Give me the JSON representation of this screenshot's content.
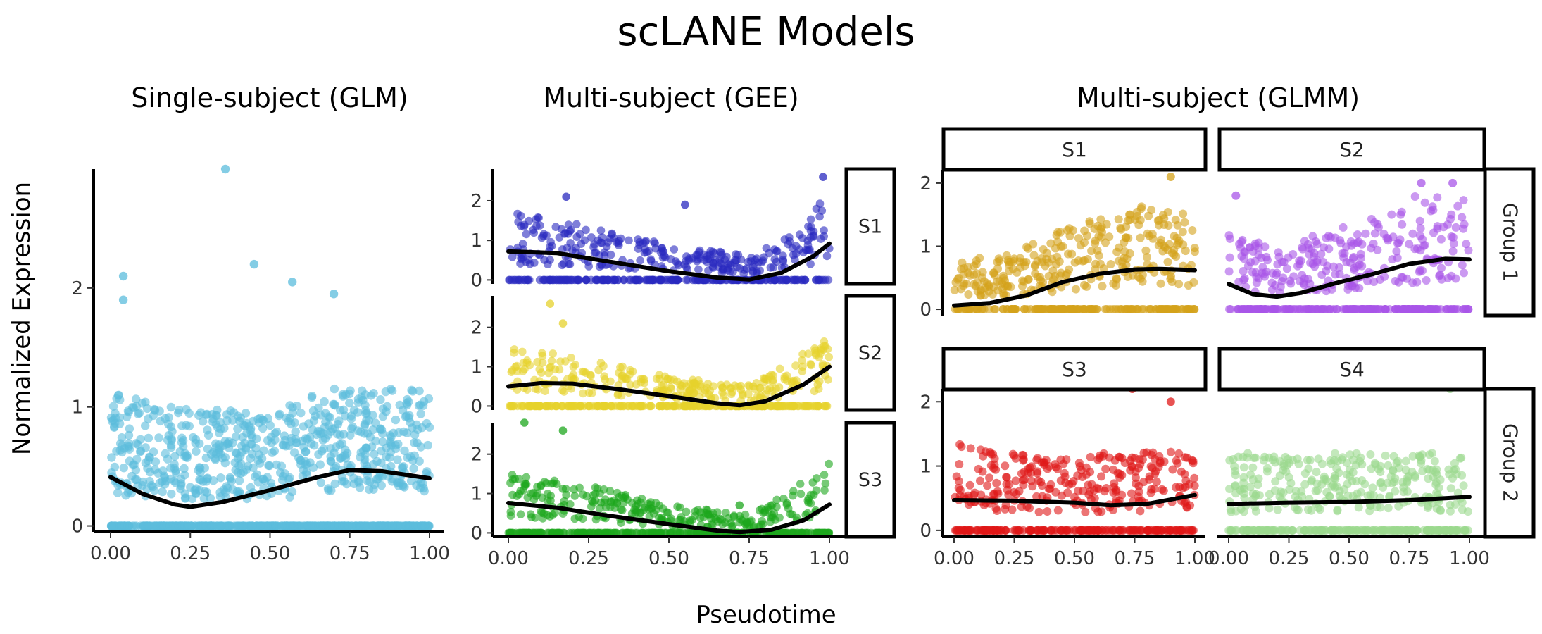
{
  "figure": {
    "title": "scLANE Models",
    "xlabel": "Pseudotime",
    "ylabel": "Normalized Expression"
  },
  "chart_data": [
    {
      "type": "scatter",
      "title": "Single-subject (GLM)",
      "xlim": [
        0,
        1
      ],
      "ylim": [
        -0.05,
        3.0
      ],
      "x_ticks": [
        "0.00",
        "0.25",
        "0.50",
        "0.75",
        "1.00"
      ],
      "y_ticks": [
        "0",
        "1",
        "2"
      ],
      "grid": false,
      "panels": [
        {
          "strip_right": "",
          "point_color": "#5BBCDC",
          "point_count": 1100,
          "zero_fraction": 0.42,
          "nonzero_baseline": [
            [
              0,
              0.75
            ],
            [
              0.25,
              0.65
            ],
            [
              0.5,
              0.65
            ],
            [
              0.75,
              0.8
            ],
            [
              1,
              0.75
            ]
          ],
          "outliers": [
            [
              0.36,
              3.1
            ],
            [
              0.04,
              2.1
            ],
            [
              0.04,
              1.9
            ],
            [
              0.45,
              2.2
            ],
            [
              0.57,
              2.05
            ],
            [
              0.7,
              1.95
            ]
          ],
          "fit_line": [
            [
              0,
              0.41
            ],
            [
              0.1,
              0.27
            ],
            [
              0.2,
              0.18
            ],
            [
              0.25,
              0.16
            ],
            [
              0.35,
              0.2
            ],
            [
              0.5,
              0.3
            ],
            [
              0.65,
              0.41
            ],
            [
              0.75,
              0.47
            ],
            [
              0.85,
              0.46
            ],
            [
              1.0,
              0.4
            ]
          ]
        }
      ]
    },
    {
      "type": "scatter",
      "title": "Multi-subject (GEE)",
      "xlim": [
        0,
        1
      ],
      "ylim": [
        -0.1,
        2.8
      ],
      "x_ticks": [
        "0.00",
        "0.25",
        "0.50",
        "0.75",
        "1.00"
      ],
      "y_ticks": [
        "0",
        "1",
        "2"
      ],
      "grid": false,
      "panels": [
        {
          "strip_right": "S1",
          "point_color": "#2A2ABF",
          "point_count": 500,
          "zero_fraction": 0.45,
          "nonzero_baseline": [
            [
              0,
              1.2
            ],
            [
              0.25,
              0.9
            ],
            [
              0.5,
              0.6
            ],
            [
              0.75,
              0.4
            ],
            [
              0.9,
              0.8
            ],
            [
              1,
              1.5
            ]
          ],
          "outliers": [
            [
              0.18,
              2.1
            ],
            [
              0.55,
              1.9
            ],
            [
              0.98,
              2.6
            ]
          ],
          "fit_line": [
            [
              0,
              0.72
            ],
            [
              0.15,
              0.68
            ],
            [
              0.3,
              0.48
            ],
            [
              0.5,
              0.22
            ],
            [
              0.65,
              0.06
            ],
            [
              0.75,
              0.01
            ],
            [
              0.85,
              0.18
            ],
            [
              0.95,
              0.6
            ],
            [
              1.0,
              0.92
            ]
          ]
        },
        {
          "strip_right": "S2",
          "point_color": "#E6D22C",
          "point_count": 500,
          "zero_fraction": 0.45,
          "nonzero_baseline": [
            [
              0,
              1.0
            ],
            [
              0.25,
              0.8
            ],
            [
              0.5,
              0.5
            ],
            [
              0.75,
              0.35
            ],
            [
              0.9,
              0.8
            ],
            [
              1,
              1.3
            ]
          ],
          "outliers": [
            [
              0.13,
              2.6
            ],
            [
              0.17,
              2.1
            ]
          ],
          "fit_line": [
            [
              0,
              0.5
            ],
            [
              0.1,
              0.58
            ],
            [
              0.2,
              0.57
            ],
            [
              0.35,
              0.42
            ],
            [
              0.5,
              0.25
            ],
            [
              0.65,
              0.07
            ],
            [
              0.72,
              0.02
            ],
            [
              0.8,
              0.12
            ],
            [
              0.92,
              0.55
            ],
            [
              1.0,
              1.0
            ]
          ]
        },
        {
          "strip_right": "S3",
          "point_color": "#1DA71D",
          "point_count": 500,
          "zero_fraction": 0.45,
          "nonzero_baseline": [
            [
              0,
              1.0
            ],
            [
              0.25,
              0.8
            ],
            [
              0.5,
              0.5
            ],
            [
              0.75,
              0.3
            ],
            [
              0.9,
              0.8
            ],
            [
              1,
              1.2
            ]
          ],
          "outliers": [
            [
              0.05,
              2.8
            ],
            [
              0.17,
              2.6
            ],
            [
              0.72,
              0.7
            ]
          ],
          "fit_line": [
            [
              0,
              0.76
            ],
            [
              0.15,
              0.64
            ],
            [
              0.3,
              0.45
            ],
            [
              0.5,
              0.22
            ],
            [
              0.65,
              0.06
            ],
            [
              0.72,
              0.02
            ],
            [
              0.82,
              0.08
            ],
            [
              0.92,
              0.32
            ],
            [
              1.0,
              0.72
            ]
          ]
        }
      ]
    },
    {
      "type": "scatter",
      "title": "Multi-subject (GLMM)",
      "xlim": [
        0,
        1
      ],
      "ylim": [
        -0.1,
        2.2
      ],
      "x_ticks": [
        "0.00",
        "0.25",
        "0.50",
        "0.75",
        "1.00"
      ],
      "y_ticks": [
        "0",
        "1",
        "2"
      ],
      "grid": false,
      "row_strips": [
        "Group 1",
        "Group 2"
      ],
      "panels": [
        {
          "strip_top": "S1",
          "row": 0,
          "col": 0,
          "point_color": "#D4A21A",
          "point_count": 450,
          "zero_fraction": 0.4,
          "nonzero_baseline": [
            [
              0,
              0.5
            ],
            [
              0.25,
              0.6
            ],
            [
              0.5,
              0.9
            ],
            [
              0.75,
              1.1
            ],
            [
              1,
              1.0
            ]
          ],
          "outliers": [
            [
              0.9,
              2.1
            ]
          ],
          "fit_line": [
            [
              0,
              0.06
            ],
            [
              0.15,
              0.1
            ],
            [
              0.3,
              0.22
            ],
            [
              0.45,
              0.43
            ],
            [
              0.6,
              0.56
            ],
            [
              0.75,
              0.63
            ],
            [
              0.85,
              0.64
            ],
            [
              1.0,
              0.62
            ]
          ]
        },
        {
          "strip_top": "S2",
          "row": 0,
          "col": 1,
          "point_color": "#A855E8",
          "point_count": 450,
          "zero_fraction": 0.4,
          "nonzero_baseline": [
            [
              0,
              0.8
            ],
            [
              0.25,
              0.7
            ],
            [
              0.5,
              0.9
            ],
            [
              0.75,
              1.2
            ],
            [
              1,
              1.2
            ]
          ],
          "outliers": [
            [
              0.03,
              1.8
            ],
            [
              0.8,
              2.0
            ],
            [
              0.93,
              2.0
            ]
          ],
          "fit_line": [
            [
              0,
              0.4
            ],
            [
              0.1,
              0.24
            ],
            [
              0.2,
              0.2
            ],
            [
              0.3,
              0.26
            ],
            [
              0.45,
              0.42
            ],
            [
              0.6,
              0.56
            ],
            [
              0.75,
              0.72
            ],
            [
              0.9,
              0.8
            ],
            [
              1.0,
              0.79
            ]
          ]
        },
        {
          "strip_top": "S3",
          "row": 1,
          "col": 0,
          "point_color": "#E01818",
          "point_count": 450,
          "zero_fraction": 0.4,
          "nonzero_baseline": [
            [
              0,
              0.9
            ],
            [
              0.25,
              0.8
            ],
            [
              0.5,
              0.8
            ],
            [
              0.75,
              0.8
            ],
            [
              1,
              0.85
            ]
          ],
          "outliers": [
            [
              0.74,
              2.3
            ],
            [
              0.9,
              2.0
            ]
          ],
          "fit_line": [
            [
              0,
              0.47
            ],
            [
              0.25,
              0.46
            ],
            [
              0.5,
              0.43
            ],
            [
              0.65,
              0.39
            ],
            [
              0.8,
              0.41
            ],
            [
              1.0,
              0.55
            ]
          ]
        },
        {
          "strip_top": "S4",
          "row": 1,
          "col": 1,
          "point_color": "#9BD88E",
          "point_count": 450,
          "zero_fraction": 0.4,
          "nonzero_baseline": [
            [
              0,
              0.8
            ],
            [
              0.25,
              0.8
            ],
            [
              0.5,
              0.8
            ],
            [
              0.75,
              0.8
            ],
            [
              1,
              0.8
            ]
          ],
          "outliers": [
            [
              0.92,
              2.3
            ]
          ],
          "fit_line": [
            [
              0,
              0.41
            ],
            [
              0.25,
              0.43
            ],
            [
              0.5,
              0.44
            ],
            [
              0.75,
              0.47
            ],
            [
              1.0,
              0.52
            ]
          ]
        }
      ]
    }
  ]
}
